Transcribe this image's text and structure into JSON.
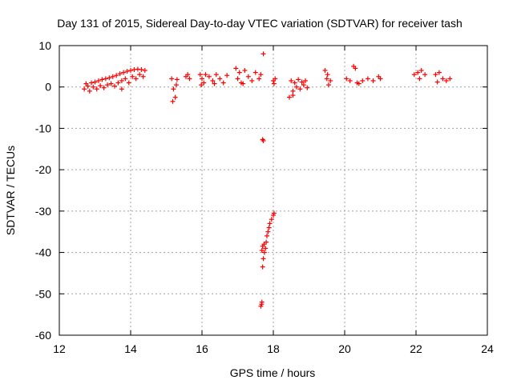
{
  "chart_data": {
    "type": "scatter",
    "title": "Day 131 of 2015, Sidereal Day-to-day VTEC variation (SDTVAR) for receiver tash",
    "xlabel": "GPS time / hours",
    "ylabel": "SDTVAR / TECUs",
    "xlim": [
      12,
      24
    ],
    "ylim": [
      -60,
      10
    ],
    "xticks": [
      "12",
      "14",
      "16",
      "18",
      "20",
      "22",
      "24"
    ],
    "yticks": [
      "10",
      "0",
      "-10",
      "-20",
      "-30",
      "-40",
      "-50",
      "-60"
    ],
    "grid": true,
    "marker": "+",
    "color": "#ff0000",
    "series": [
      {
        "points": [
          [
            12.7,
            -0.5
          ],
          [
            12.75,
            0.8
          ],
          [
            12.8,
            0.2
          ],
          [
            12.85,
            -1.0
          ],
          [
            12.9,
            1.0
          ],
          [
            12.95,
            0.0
          ],
          [
            13.0,
            1.2
          ],
          [
            13.05,
            -0.5
          ],
          [
            13.1,
            1.5
          ],
          [
            13.15,
            0.3
          ],
          [
            13.2,
            1.8
          ],
          [
            13.25,
            -0.2
          ],
          [
            13.3,
            2.0
          ],
          [
            13.35,
            0.5
          ],
          [
            13.4,
            2.2
          ],
          [
            13.45,
            0.8
          ],
          [
            13.5,
            2.5
          ],
          [
            13.55,
            0.2
          ],
          [
            13.6,
            2.8
          ],
          [
            13.65,
            1.0
          ],
          [
            13.7,
            3.2
          ],
          [
            13.75,
            1.5
          ],
          [
            13.8,
            3.5
          ],
          [
            13.85,
            2.0
          ],
          [
            13.9,
            3.8
          ],
          [
            13.95,
            1.0
          ],
          [
            14.0,
            4.0
          ],
          [
            14.05,
            2.5
          ],
          [
            14.1,
            4.2
          ],
          [
            14.15,
            2.0
          ],
          [
            14.2,
            4.3
          ],
          [
            14.25,
            3.0
          ],
          [
            14.3,
            4.2
          ],
          [
            14.35,
            2.5
          ],
          [
            14.4,
            4.0
          ],
          [
            13.75,
            -0.5
          ],
          [
            15.15,
            2.0
          ],
          [
            15.2,
            -0.5
          ],
          [
            15.25,
            -2.5
          ],
          [
            15.3,
            1.8
          ],
          [
            15.18,
            -3.5
          ],
          [
            15.28,
            0.5
          ],
          [
            15.55,
            2.5
          ],
          [
            15.6,
            3.0
          ],
          [
            15.65,
            2.0
          ],
          [
            15.95,
            3.0
          ],
          [
            16.0,
            2.0
          ],
          [
            16.05,
            1.0
          ],
          [
            16.1,
            3.0
          ],
          [
            16.2,
            2.5
          ],
          [
            16.3,
            1.5
          ],
          [
            16.4,
            3.0
          ],
          [
            16.5,
            2.0
          ],
          [
            16.6,
            1.0
          ],
          [
            16.7,
            2.8
          ],
          [
            15.98,
            0.5
          ],
          [
            16.35,
            0.8
          ],
          [
            16.95,
            4.5
          ],
          [
            17.0,
            2.0
          ],
          [
            17.05,
            3.5
          ],
          [
            17.1,
            1.0
          ],
          [
            17.2,
            4.0
          ],
          [
            17.3,
            2.5
          ],
          [
            17.4,
            1.5
          ],
          [
            17.5,
            3.5
          ],
          [
            17.6,
            2.0
          ],
          [
            17.65,
            3.0
          ],
          [
            17.15,
            0.8
          ],
          [
            17.72,
            8.0
          ],
          [
            17.7,
            -12.7
          ],
          [
            17.72,
            -13.0
          ],
          [
            17.65,
            -53.0
          ],
          [
            17.68,
            -52.0
          ],
          [
            17.67,
            -52.5
          ],
          [
            17.7,
            -43.5
          ],
          [
            17.72,
            -41.5
          ],
          [
            17.68,
            -39.5
          ],
          [
            17.75,
            -40.0
          ],
          [
            17.78,
            -39.0
          ],
          [
            17.8,
            -37.5
          ],
          [
            17.82,
            -36.0
          ],
          [
            17.85,
            -35.0
          ],
          [
            17.88,
            -34.0
          ],
          [
            17.9,
            -33.0
          ],
          [
            17.95,
            -32.0
          ],
          [
            18.0,
            -31.0
          ],
          [
            18.02,
            -30.5
          ],
          [
            17.7,
            -38.5
          ],
          [
            17.74,
            -38.0
          ],
          [
            18.0,
            1.5
          ],
          [
            18.05,
            2.0
          ],
          [
            18.02,
            0.8
          ],
          [
            18.45,
            -2.5
          ],
          [
            18.5,
            1.5
          ],
          [
            18.55,
            -1.0
          ],
          [
            18.6,
            1.0
          ],
          [
            18.65,
            0.0
          ],
          [
            18.7,
            1.8
          ],
          [
            18.75,
            -0.5
          ],
          [
            18.8,
            1.2
          ],
          [
            18.85,
            0.5
          ],
          [
            18.9,
            1.5
          ],
          [
            18.95,
            -0.2
          ],
          [
            18.55,
            -2.0
          ],
          [
            19.45,
            4.0
          ],
          [
            19.5,
            2.0
          ],
          [
            19.55,
            0.5
          ],
          [
            19.6,
            1.5
          ],
          [
            19.52,
            3.0
          ],
          [
            20.05,
            2.0
          ],
          [
            20.15,
            1.5
          ],
          [
            20.25,
            5.0
          ],
          [
            20.3,
            4.5
          ],
          [
            20.35,
            1.0
          ],
          [
            20.5,
            1.5
          ],
          [
            20.65,
            2.0
          ],
          [
            20.8,
            1.5
          ],
          [
            20.95,
            2.5
          ],
          [
            21.0,
            2.0
          ],
          [
            20.4,
            0.8
          ],
          [
            21.95,
            3.0
          ],
          [
            22.05,
            3.5
          ],
          [
            22.15,
            4.0
          ],
          [
            22.25,
            3.0
          ],
          [
            22.1,
            2.0
          ],
          [
            22.55,
            3.0
          ],
          [
            22.65,
            3.5
          ],
          [
            22.75,
            2.0
          ],
          [
            22.85,
            1.5
          ],
          [
            22.95,
            2.0
          ],
          [
            22.6,
            1.2
          ]
        ]
      }
    ]
  }
}
